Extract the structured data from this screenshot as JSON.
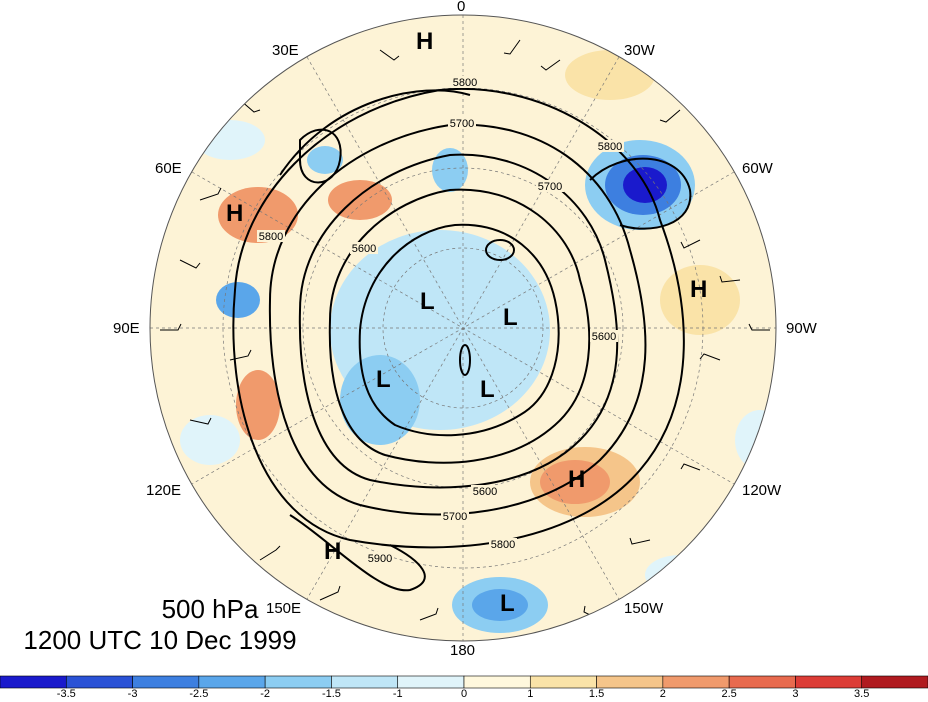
{
  "title": {
    "level": "500 hPa",
    "time": "1200 UTC 10 Dec 1999"
  },
  "lon_labels": [
    "0",
    "30W",
    "60W",
    "90W",
    "120W",
    "150W",
    "180",
    "150E",
    "120E",
    "90E",
    "60E",
    "30E"
  ],
  "contour_labels": [
    "5800",
    "5700",
    "5600",
    "5800",
    "5700",
    "5600",
    "5800",
    "5700",
    "5600",
    "5800",
    "5900"
  ],
  "centers": [
    {
      "label": "H"
    },
    {
      "label": "H"
    },
    {
      "label": "H"
    },
    {
      "label": "H"
    },
    {
      "label": "H"
    },
    {
      "label": "L"
    },
    {
      "label": "L"
    },
    {
      "label": "L"
    },
    {
      "label": "L"
    },
    {
      "label": "L"
    }
  ],
  "colorbar": {
    "labels": [
      "-3.5",
      "-3",
      "-2.5",
      "-2",
      "-1.5",
      "-1",
      "0",
      "1",
      "1.5",
      "2",
      "2.5",
      "3",
      "3.5"
    ],
    "colors": [
      "#1a1acc",
      "#2a52d6",
      "#3d7fe0",
      "#5aa6ea",
      "#8ccdf2",
      "#bfe6f7",
      "#e0f4fa",
      "#fff8dd",
      "#fae3a8",
      "#f5c58a",
      "#f09a6c",
      "#e86a4e",
      "#dc3c36",
      "#b01a1f"
    ]
  }
}
